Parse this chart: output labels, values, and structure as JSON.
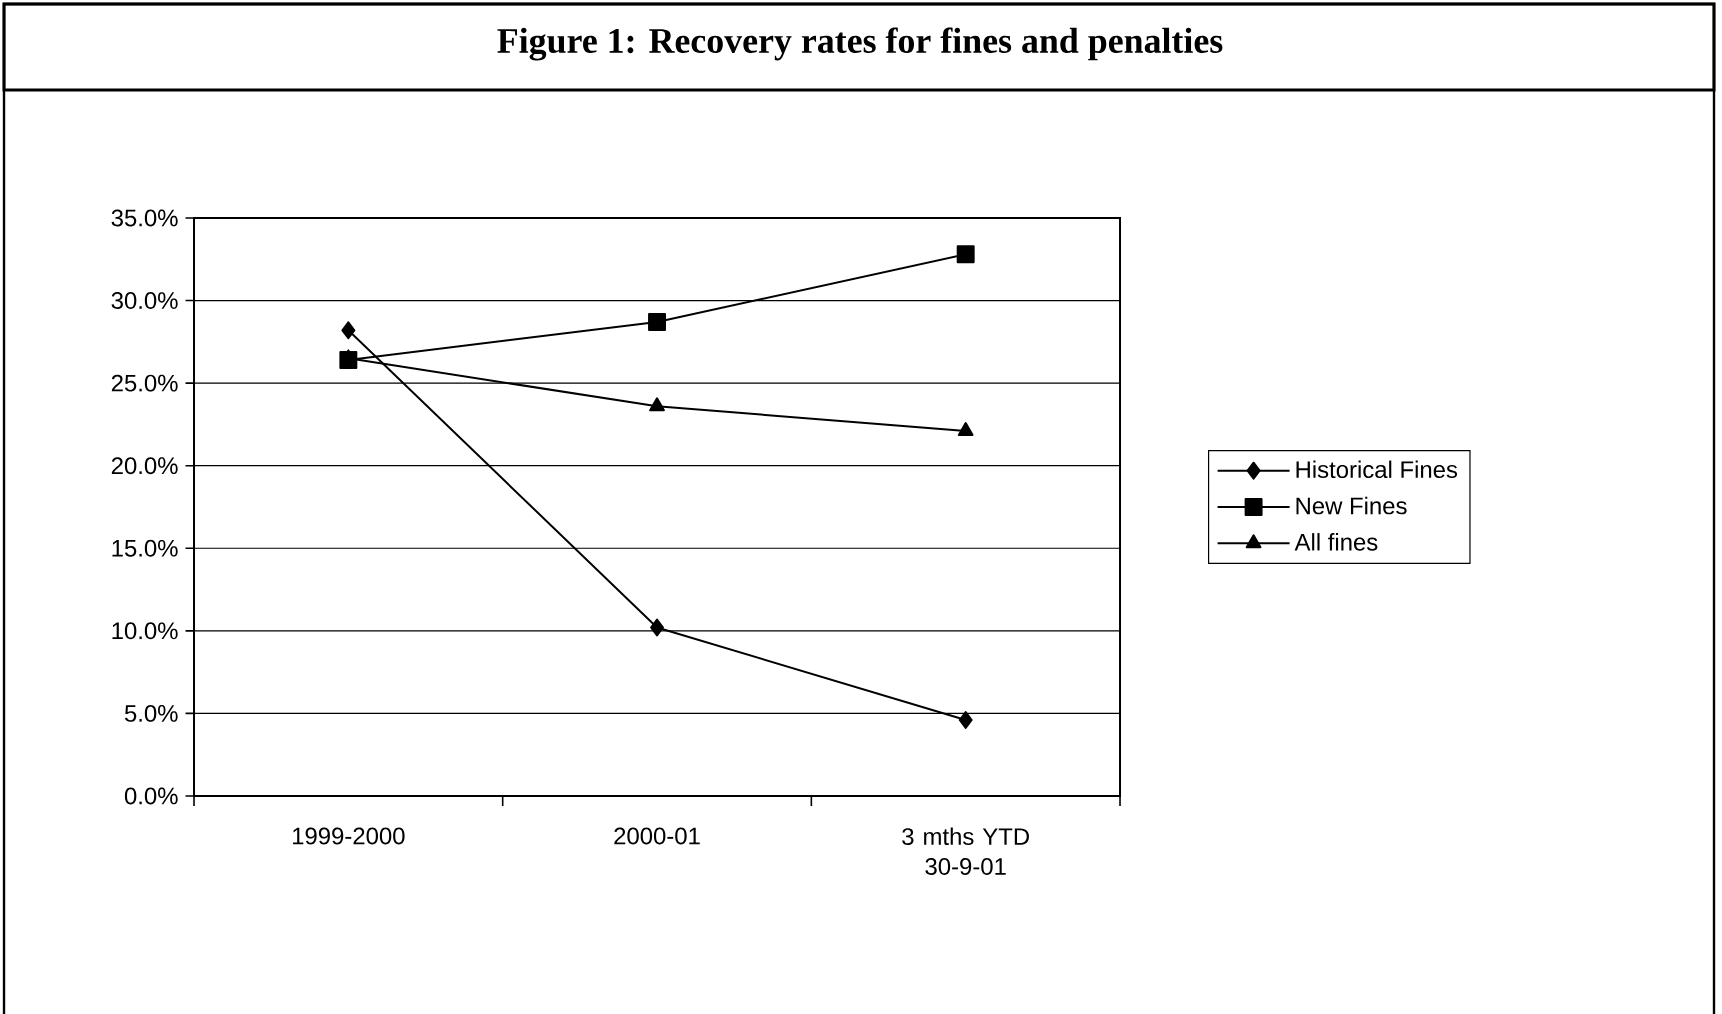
{
  "chart_data": {
    "type": "line",
    "title": "Figure 1: Recovery rates for fines and penalties",
    "categories": [
      "1999-2000",
      "2000-01",
      "3 mths YTD 30-9-01"
    ],
    "series": [
      {
        "name": "Historical Fines",
        "color": "#000000",
        "marker": "diamond",
        "values": [
          28.2,
          10.2,
          4.6
        ]
      },
      {
        "name": "New Fines",
        "color": "#000000",
        "marker": "square",
        "values": [
          26.4,
          28.7,
          32.8
        ]
      },
      {
        "name": "All fines",
        "color": "#000000",
        "marker": "triangle",
        "values": [
          26.5,
          23.6,
          22.1
        ]
      }
    ],
    "ylim": [
      0,
      35
    ],
    "yticks": [
      {
        "value": 0,
        "label": "0.0%"
      },
      {
        "value": 5,
        "label": "5.0%"
      },
      {
        "value": 10,
        "label": "10.0%"
      },
      {
        "value": 15,
        "label": "15.0%"
      },
      {
        "value": 20,
        "label": "20.0%"
      },
      {
        "value": 25,
        "label": "25.0%"
      },
      {
        "value": 30,
        "label": "30.0%"
      },
      {
        "value": 35,
        "label": "35.0%"
      }
    ],
    "grid": "y",
    "legend": "right",
    "line_style": "solid"
  }
}
